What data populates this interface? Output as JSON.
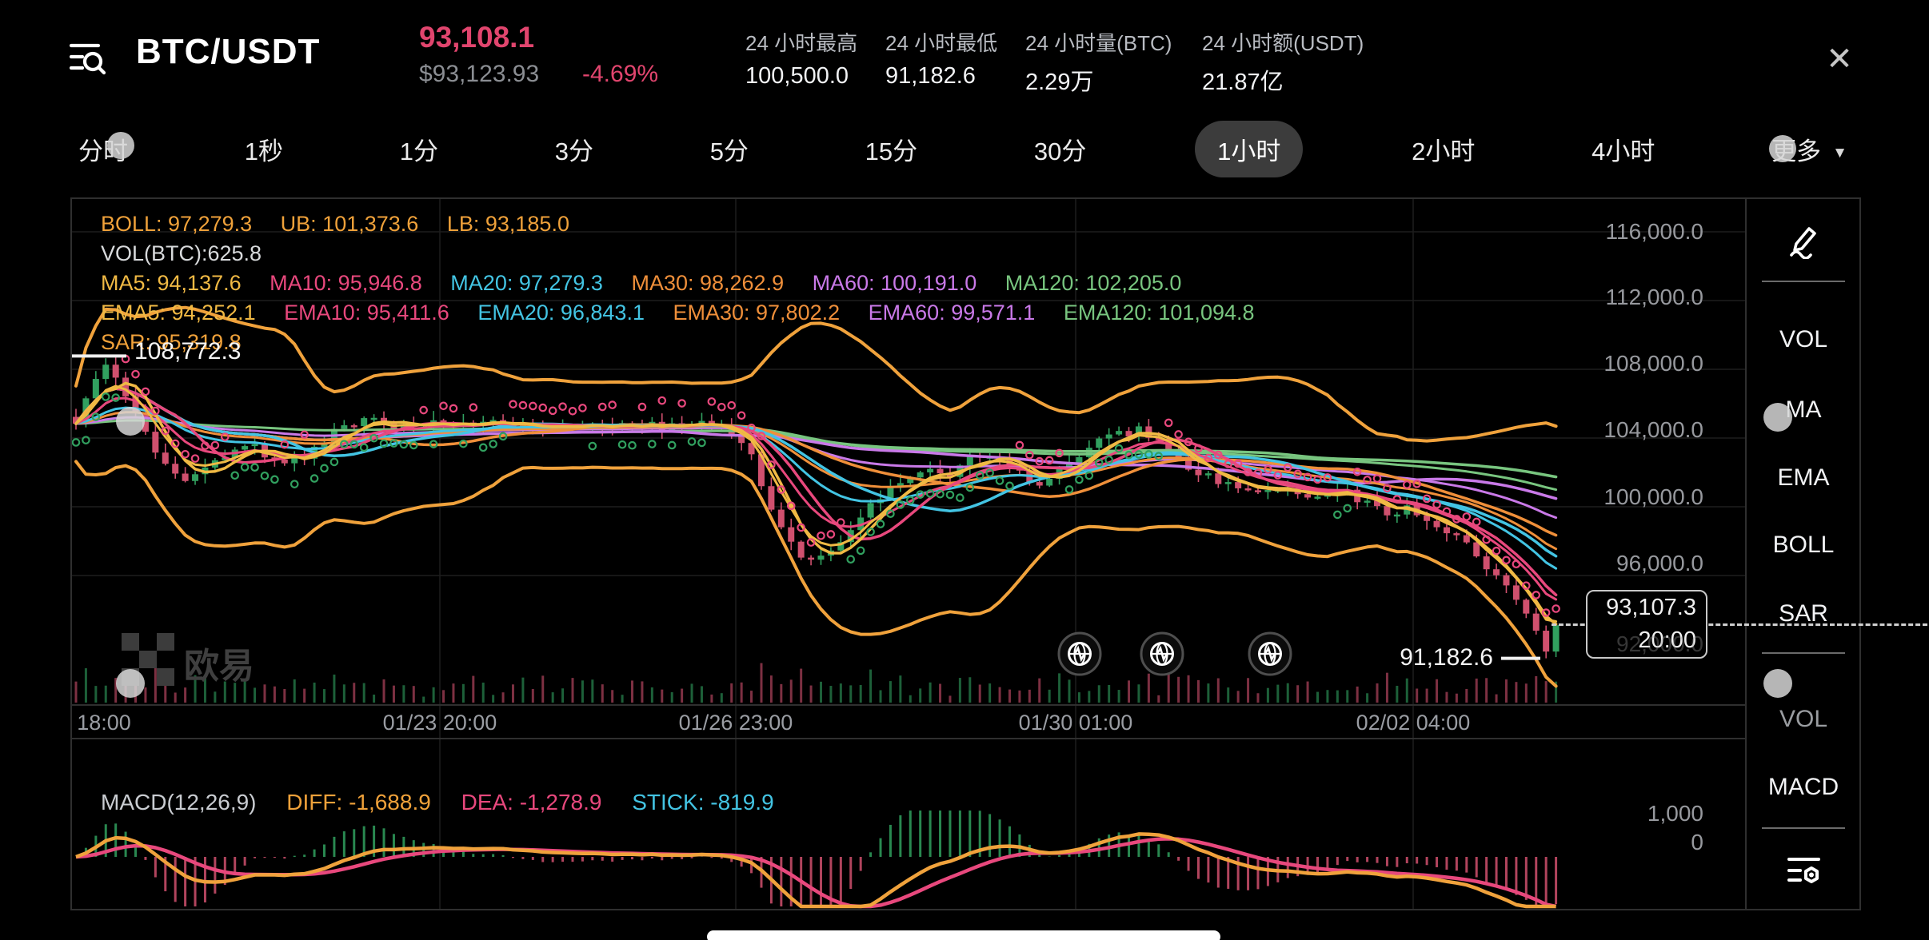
{
  "header": {
    "symbol": "BTC/USDT",
    "last_price": "93,108.1",
    "usd_price": "$93,123.93",
    "change_pct": "-4.69%",
    "stats": [
      {
        "label": "24 小时最高",
        "value": "100,500.0"
      },
      {
        "label": "24 小时最低",
        "value": "91,182.6"
      },
      {
        "label": "24 小时量(BTC)",
        "value": "2.29万"
      },
      {
        "label": "24 小时额(USDT)",
        "value": "21.87亿"
      }
    ]
  },
  "timeframes": {
    "items": [
      "分时",
      "1秒",
      "1分",
      "3分",
      "5分",
      "15分",
      "30分",
      "1小时",
      "2小时",
      "4小时"
    ],
    "active": "1小时",
    "more_label": "更多"
  },
  "indicators": {
    "boll": [
      "BOLL: 97,279.3",
      "UB: 101,373.6",
      "LB: 93,185.0"
    ],
    "vol": "VOL(BTC):625.8",
    "ma": [
      "MA5: 94,137.6",
      "MA10: 95,946.8",
      "MA20: 97,279.3",
      "MA30: 98,262.9",
      "MA60: 100,191.0",
      "MA120: 102,205.0"
    ],
    "ema": [
      "EMA5: 94,252.1",
      "EMA10: 95,411.6",
      "EMA20: 96,843.1",
      "EMA30: 97,802.2",
      "EMA60: 99,571.1",
      "EMA120: 101,094.8"
    ],
    "sar": "SAR: 95,319.8"
  },
  "chart": {
    "type": "candlestick",
    "y_axis": {
      "labels": [
        "116,000.0",
        "112,000.0",
        "108,000.0",
        "104,000.0",
        "100,000.0",
        "96,000.0"
      ],
      "ghost": "92,000.0",
      "top_value": 116000,
      "step": 4000
    },
    "x_axis": [
      "18:00",
      "01/23 20:00",
      "01/26 23:00",
      "01/30 01:00",
      "02/02 04:00"
    ],
    "high_label": "108,772.3",
    "low_label": "91,182.6",
    "price_tag": {
      "price": "93,107.3",
      "time": "20:00"
    },
    "macd": {
      "title": "MACD(12,26,9)",
      "diff": "DIFF: -1,688.9",
      "dea": "DEA: -1,278.9",
      "stick": "STICK: -819.9",
      "axis": [
        "1,000",
        "0"
      ]
    },
    "price_anchors": [
      [
        0.0,
        104800
      ],
      [
        0.01,
        106800
      ],
      [
        0.022,
        108772
      ],
      [
        0.035,
        106000
      ],
      [
        0.055,
        103200
      ],
      [
        0.075,
        101500
      ],
      [
        0.095,
        102800
      ],
      [
        0.115,
        103800
      ],
      [
        0.135,
        102600
      ],
      [
        0.155,
        103000
      ],
      [
        0.175,
        104300
      ],
      [
        0.195,
        105300
      ],
      [
        0.215,
        104700
      ],
      [
        0.235,
        104900
      ],
      [
        0.255,
        104700
      ],
      [
        0.28,
        104800
      ],
      [
        0.305,
        104700
      ],
      [
        0.33,
        104800
      ],
      [
        0.355,
        104700
      ],
      [
        0.38,
        104800
      ],
      [
        0.4,
        104700
      ],
      [
        0.42,
        104800
      ],
      [
        0.44,
        104600
      ],
      [
        0.455,
        103200
      ],
      [
        0.465,
        101000
      ],
      [
        0.475,
        99000
      ],
      [
        0.485,
        97500
      ],
      [
        0.5,
        96800
      ],
      [
        0.515,
        97800
      ],
      [
        0.53,
        99300
      ],
      [
        0.545,
        100800
      ],
      [
        0.56,
        101800
      ],
      [
        0.575,
        102300
      ],
      [
        0.59,
        101600
      ],
      [
        0.605,
        102800
      ],
      [
        0.62,
        103200
      ],
      [
        0.635,
        102200
      ],
      [
        0.65,
        101200
      ],
      [
        0.665,
        102200
      ],
      [
        0.68,
        103200
      ],
      [
        0.695,
        103900
      ],
      [
        0.71,
        104300
      ],
      [
        0.72,
        104600
      ],
      [
        0.735,
        103400
      ],
      [
        0.755,
        102200
      ],
      [
        0.775,
        101300
      ],
      [
        0.795,
        100700
      ],
      [
        0.815,
        101000
      ],
      [
        0.835,
        100400
      ],
      [
        0.855,
        100900
      ],
      [
        0.87,
        100300
      ],
      [
        0.885,
        99600
      ],
      [
        0.9,
        99900
      ],
      [
        0.915,
        99200
      ],
      [
        0.93,
        98400
      ],
      [
        0.945,
        97300
      ],
      [
        0.958,
        96200
      ],
      [
        0.97,
        95000
      ],
      [
        0.98,
        93800
      ],
      [
        0.988,
        92300
      ],
      [
        0.994,
        91400
      ],
      [
        1.0,
        93108
      ]
    ],
    "high_value": 108772.3,
    "low_value": 91182.6,
    "last_value": 93107.3
  },
  "sidebar": {
    "top": [
      "VOL",
      "MA",
      "EMA",
      "BOLL",
      "SAR"
    ],
    "bottom": [
      "VOL",
      "MACD"
    ]
  },
  "watermark": "欧易",
  "close_glyph": "✕",
  "caret_glyph": "▼",
  "colors": {
    "up": "#31a05f",
    "down": "#d0506e",
    "boll_band": "#f0a23c",
    "ma5": "#f0b944",
    "ma10": "#e8487d",
    "ma20": "#43c4e3",
    "ma30": "#ef8f3a",
    "ma60": "#c979e8",
    "ma120": "#78c57f",
    "accent_pink": "#e1456e"
  }
}
